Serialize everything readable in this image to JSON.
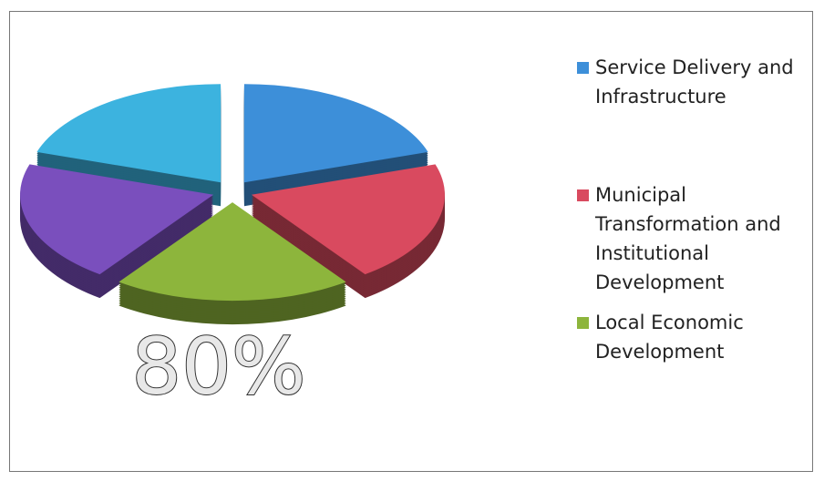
{
  "chart_data": {
    "type": "pie",
    "categories": [
      "Service Delivery and Infrastructure",
      "Municipal Transformation and Institutional Development",
      "Local Economic Development",
      null,
      null
    ],
    "values": [
      20,
      20,
      20,
      20,
      20
    ],
    "colors": [
      "#3d8fd9",
      "#d94a5f",
      "#8db53c",
      "#7a4fbd",
      "#3cb3df"
    ],
    "annotation": "80%",
    "legend": "right"
  }
}
